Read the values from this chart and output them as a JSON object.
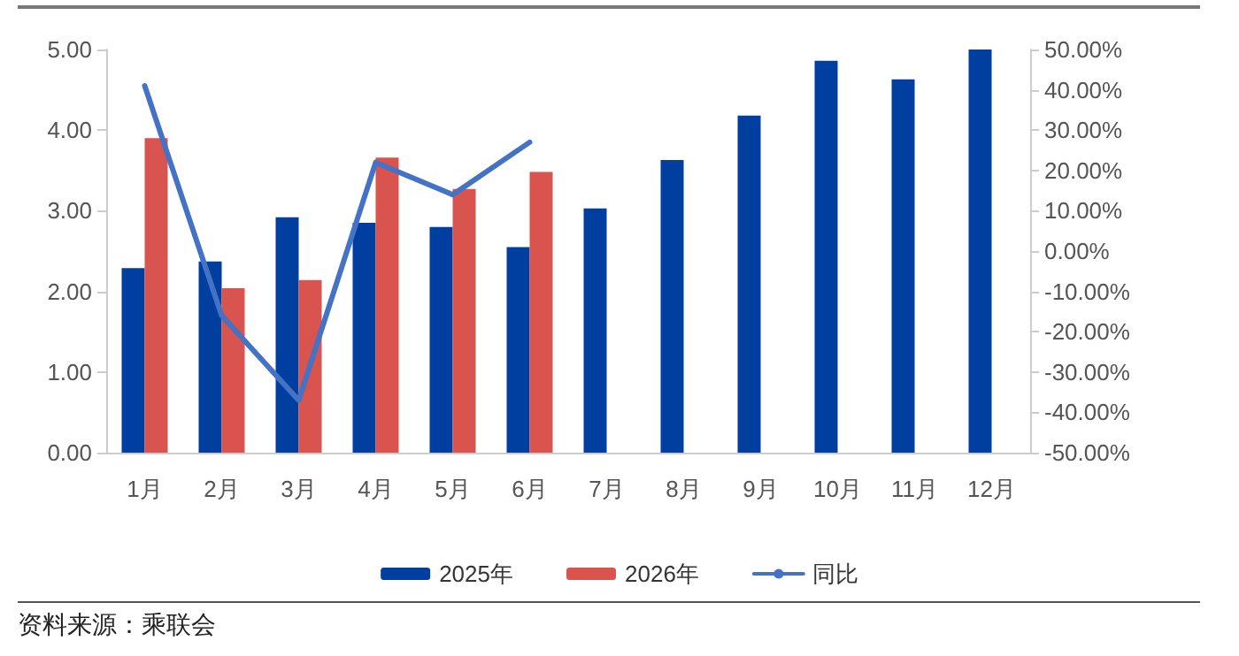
{
  "chart_data": {
    "type": "bar",
    "categories": [
      "1月",
      "2月",
      "3月",
      "4月",
      "5月",
      "6月",
      "7月",
      "8月",
      "9月",
      "10月",
      "11月",
      "12月"
    ],
    "series": [
      {
        "name": "2025年",
        "color": "#003e9f",
        "values": [
          2.29,
          2.37,
          2.92,
          2.85,
          2.8,
          2.55,
          3.03,
          3.63,
          4.18,
          4.86,
          4.63,
          5.0
        ]
      },
      {
        "name": "2026年",
        "color": "#d9534f",
        "values": [
          3.9,
          2.04,
          2.14,
          3.66,
          3.27,
          3.48,
          null,
          null,
          null,
          null,
          null,
          null
        ]
      },
      {
        "name": "同比",
        "type": "line",
        "axis": "y2",
        "color": "#4472c4",
        "marker": "none",
        "values": [
          41,
          -16,
          -37,
          22,
          14,
          27,
          null,
          null,
          null,
          null,
          null,
          null
        ]
      }
    ],
    "ylim": [
      0,
      5
    ],
    "yticks": [
      {
        "value": 0,
        "label": "0.00"
      },
      {
        "value": 1,
        "label": "1.00"
      },
      {
        "value": 2,
        "label": "2.00"
      },
      {
        "value": 3,
        "label": "3.00"
      },
      {
        "value": 4,
        "label": "4.00"
      },
      {
        "value": 5,
        "label": "5.00"
      }
    ],
    "y2lim": [
      -50,
      50
    ],
    "y2ticks": [
      {
        "value": -50,
        "label": "-50.00%"
      },
      {
        "value": -40,
        "label": "-40.00%"
      },
      {
        "value": -30,
        "label": "-30.00%"
      },
      {
        "value": -20,
        "label": "-20.00%"
      },
      {
        "value": -10,
        "label": "-10.00%"
      },
      {
        "value": 0,
        "label": "0.00%"
      },
      {
        "value": 10,
        "label": "10.00%"
      },
      {
        "value": 20,
        "label": "20.00%"
      },
      {
        "value": 30,
        "label": "30.00%"
      },
      {
        "value": 40,
        "label": "40.00%"
      },
      {
        "value": 50,
        "label": "50.00%"
      }
    ],
    "grid": false,
    "legend": "bottom",
    "annotations": [
      "资料来源：乘联会"
    ]
  }
}
